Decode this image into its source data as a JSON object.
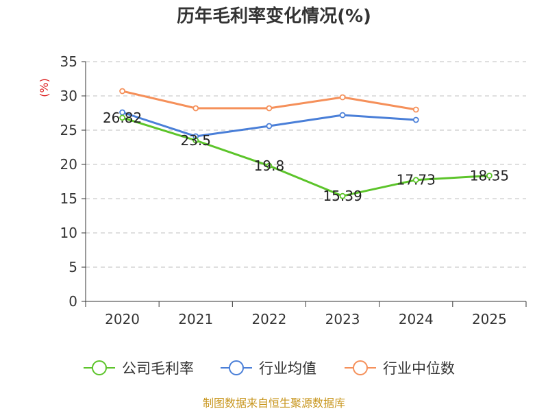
{
  "chart_data": {
    "type": "line",
    "title": "历年毛利率变化情况(%)",
    "ylabel": "(%)",
    "xlabel": "",
    "ylim": [
      0,
      35
    ],
    "yticks": [
      0,
      5,
      10,
      15,
      20,
      25,
      30,
      35
    ],
    "categories": [
      "2020",
      "2021",
      "2022",
      "2023",
      "2024",
      "2025"
    ],
    "series": [
      {
        "name": "公司毛利率",
        "color": "#5cc42a",
        "values": [
          26.82,
          23.5,
          19.8,
          15.39,
          17.73,
          18.35
        ],
        "labels": [
          "26.82",
          "23.5",
          "19.8",
          "15.39",
          "17.73",
          "18.35"
        ]
      },
      {
        "name": "行业均值",
        "color": "#4a7fd8",
        "values": [
          27.6,
          24.1,
          25.6,
          27.2,
          26.5,
          null
        ]
      },
      {
        "name": "行业中位数",
        "color": "#f5905a",
        "values": [
          30.7,
          28.2,
          28.2,
          29.8,
          28.0,
          null
        ]
      }
    ],
    "grid": true,
    "legend": "bottom"
  },
  "source": "制图数据来自恒生聚源数据库"
}
